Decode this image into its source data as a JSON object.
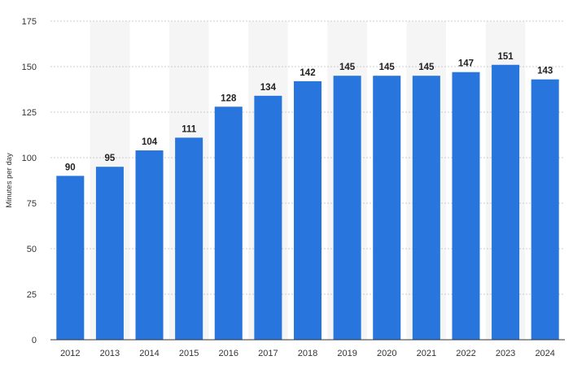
{
  "chart_data": {
    "type": "bar",
    "categories": [
      "2012",
      "2013",
      "2014",
      "2015",
      "2016",
      "2017",
      "2018",
      "2019",
      "2020",
      "2021",
      "2022",
      "2023",
      "2024"
    ],
    "series": [
      {
        "values": [
          90,
          95,
          104,
          111,
          128,
          134,
          142,
          145,
          145,
          145,
          147,
          151,
          143
        ]
      }
    ],
    "ylabel": "Minutes per day",
    "xlabel": "",
    "ylim": [
      0,
      175
    ],
    "yticks": [
      0,
      25,
      50,
      75,
      100,
      125,
      150,
      175
    ],
    "grid": true,
    "bar_color": "#2876dd",
    "band_color": "#f5f5f5",
    "gridline_color": "#cccccc",
    "data_labels": true
  }
}
